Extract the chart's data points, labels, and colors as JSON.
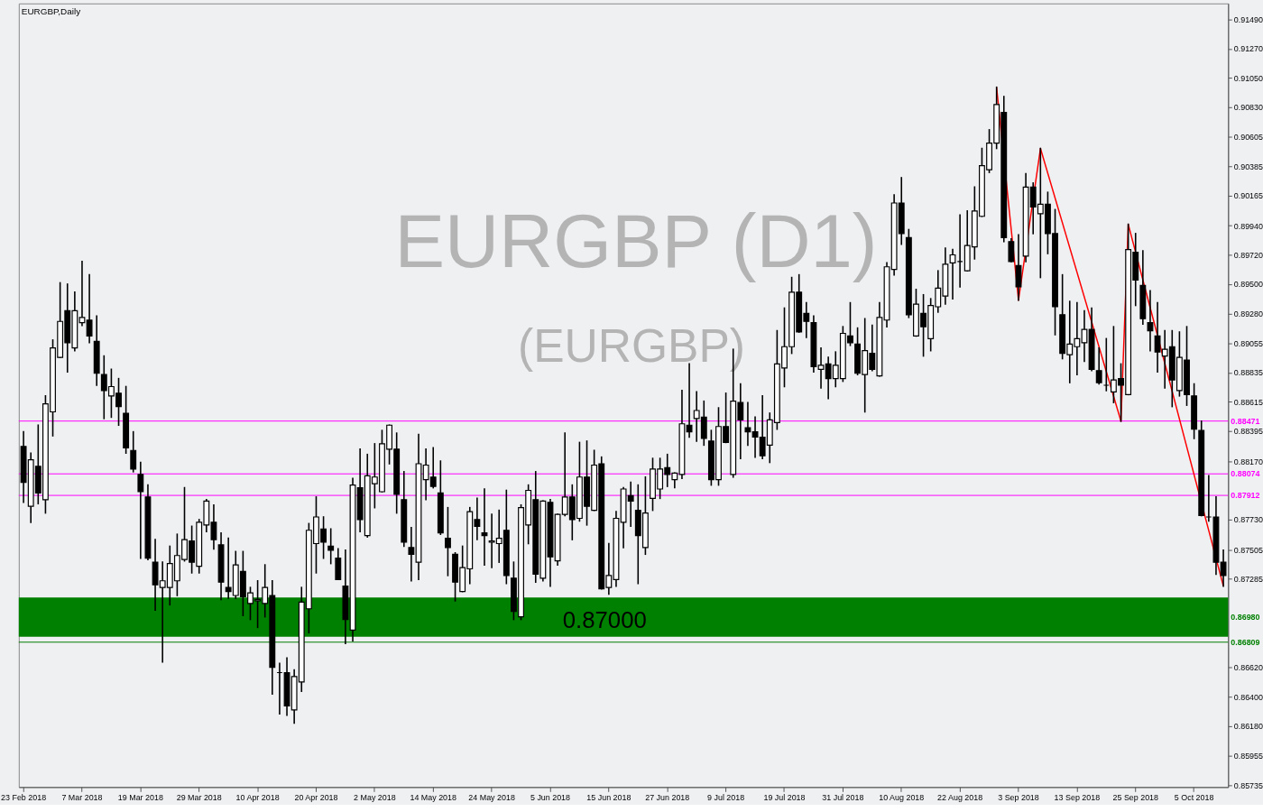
{
  "chart_data": {
    "type": "candlestick",
    "title": "EURGBP,Daily",
    "categories": [
      "23 Feb 2018",
      null,
      null,
      null,
      null,
      null,
      null,
      null,
      "7 Mar 2018",
      null,
      null,
      null,
      null,
      null,
      null,
      null,
      "19 Mar 2018",
      null,
      null,
      null,
      null,
      null,
      null,
      null,
      "29 Mar 2018",
      null,
      null,
      null,
      null,
      null,
      null,
      null,
      "10 Apr 2018",
      null,
      null,
      null,
      null,
      null,
      null,
      null,
      "20 Apr 2018",
      null,
      null,
      null,
      null,
      null,
      null,
      null,
      "2 May 2018",
      null,
      null,
      null,
      null,
      null,
      null,
      null,
      "14 May 2018",
      null,
      null,
      null,
      null,
      null,
      null,
      null,
      "24 May 2018",
      null,
      null,
      null,
      null,
      null,
      null,
      null,
      "5 Jun 2018",
      null,
      null,
      null,
      null,
      null,
      null,
      null,
      "15 Jun 2018",
      null,
      null,
      null,
      null,
      null,
      null,
      null,
      "27 Jun 2018",
      null,
      null,
      null,
      null,
      null,
      null,
      null,
      "9 Jul 2018",
      null,
      null,
      null,
      null,
      null,
      null,
      null,
      "19 Jul 2018",
      null,
      null,
      null,
      null,
      null,
      null,
      null,
      "31 Jul 2018",
      null,
      null,
      null,
      null,
      null,
      null,
      null,
      "10 Aug 2018",
      null,
      null,
      null,
      null,
      null,
      null,
      null,
      "22 Aug 2018",
      null,
      null,
      null,
      null,
      null,
      null,
      null,
      "3 Sep 2018",
      null,
      null,
      null,
      null,
      null,
      null,
      null,
      "13 Sep 2018",
      null,
      null,
      null,
      null,
      null,
      null,
      null,
      "25 Sep 2018",
      null,
      null,
      null,
      null,
      null,
      null,
      null,
      "5 Oct 2018",
      null,
      null,
      null,
      null
    ],
    "ohlc": [
      [
        0.8828,
        0.8839,
        0.8786,
        0.8801
      ],
      [
        0.8783,
        0.8823,
        0.8771,
        0.8818
      ],
      [
        0.8813,
        0.8844,
        0.8785,
        0.8793
      ],
      [
        0.8788,
        0.8866,
        0.8778,
        0.886
      ],
      [
        0.8854,
        0.8908,
        0.8836,
        0.8902
      ],
      [
        0.8895,
        0.8951,
        0.8895,
        0.8922
      ],
      [
        0.893,
        0.895,
        0.8884,
        0.8906
      ],
      [
        0.8902,
        0.8944,
        0.89,
        0.893
      ],
      [
        0.8921,
        0.8967,
        0.8919,
        0.8925
      ],
      [
        0.8923,
        0.8957,
        0.8906,
        0.8911
      ],
      [
        0.8907,
        0.8926,
        0.8874,
        0.8883
      ],
      [
        0.8882,
        0.8896,
        0.8849,
        0.887
      ],
      [
        0.8866,
        0.8886,
        0.885,
        0.8873
      ],
      [
        0.8868,
        0.8879,
        0.8844,
        0.8858
      ],
      [
        0.8853,
        0.8873,
        0.8823,
        0.8827
      ],
      [
        0.8825,
        0.8839,
        0.8809,
        0.8811
      ],
      [
        0.8807,
        0.8816,
        0.8744,
        0.8794
      ],
      [
        0.879,
        0.8799,
        0.8743,
        0.8744
      ],
      [
        0.8741,
        0.8758,
        0.8705,
        0.8724
      ],
      [
        0.8722,
        0.8741,
        0.8666,
        0.8727
      ],
      [
        0.8722,
        0.8753,
        0.8709,
        0.874
      ],
      [
        0.8727,
        0.8762,
        0.8716,
        0.8746
      ],
      [
        0.8743,
        0.8797,
        0.8742,
        0.8758
      ],
      [
        0.8757,
        0.8768,
        0.8733,
        0.8741
      ],
      [
        0.8738,
        0.8773,
        0.8733,
        0.8771
      ],
      [
        0.8769,
        0.8788,
        0.8764,
        0.8787
      ],
      [
        0.8771,
        0.8784,
        0.8751,
        0.8758
      ],
      [
        0.8754,
        0.8763,
        0.8713,
        0.8726
      ],
      [
        0.8722,
        0.8759,
        0.8714,
        0.8719
      ],
      [
        0.8716,
        0.8749,
        0.8714,
        0.8739
      ],
      [
        0.8734,
        0.8749,
        0.8701,
        0.8715
      ],
      [
        0.871,
        0.8722,
        0.8698,
        0.8718
      ],
      [
        0.8712,
        0.8727,
        0.8692,
        0.8713
      ],
      [
        0.871,
        0.8739,
        0.87,
        0.8722
      ],
      [
        0.8716,
        0.8727,
        0.8642,
        0.8662
      ],
      [
        0.8658,
        0.8665,
        0.8627,
        0.8658
      ],
      [
        0.8658,
        0.8669,
        0.8626,
        0.8633
      ],
      [
        0.863,
        0.866,
        0.862,
        0.8655
      ],
      [
        0.8651,
        0.8722,
        0.8644,
        0.8711
      ],
      [
        0.8706,
        0.877,
        0.8688,
        0.8765
      ],
      [
        0.8755,
        0.879,
        0.8733,
        0.8775
      ],
      [
        0.8766,
        0.8775,
        0.8744,
        0.8756
      ],
      [
        0.8753,
        0.8766,
        0.874,
        0.875
      ],
      [
        0.8744,
        0.8751,
        0.8728,
        0.8728
      ],
      [
        0.8723,
        0.875,
        0.868,
        0.8698
      ],
      [
        0.869,
        0.8804,
        0.8682,
        0.8799
      ],
      [
        0.8797,
        0.8826,
        0.8764,
        0.8773
      ],
      [
        0.8761,
        0.8822,
        0.876,
        0.8806
      ],
      [
        0.88,
        0.883,
        0.8782,
        0.8805
      ],
      [
        0.8794,
        0.884,
        0.8794,
        0.883
      ],
      [
        0.8826,
        0.8844,
        0.8815,
        0.8844
      ],
      [
        0.8826,
        0.8838,
        0.8778,
        0.8792
      ],
      [
        0.8788,
        0.8809,
        0.8753,
        0.8756
      ],
      [
        0.8752,
        0.8767,
        0.8727,
        0.8747
      ],
      [
        0.8741,
        0.8837,
        0.8728,
        0.8815
      ],
      [
        0.8803,
        0.8826,
        0.8788,
        0.8814
      ],
      [
        0.8805,
        0.8827,
        0.8797,
        0.8798
      ],
      [
        0.8793,
        0.8817,
        0.8762,
        0.8763
      ],
      [
        0.8759,
        0.8782,
        0.8731,
        0.8752
      ],
      [
        0.8747,
        0.8748,
        0.8712,
        0.8726
      ],
      [
        0.8719,
        0.8753,
        0.8719,
        0.8737
      ],
      [
        0.8736,
        0.8782,
        0.8725,
        0.8779
      ],
      [
        0.8773,
        0.8789,
        0.8758,
        0.8768
      ],
      [
        0.8763,
        0.8796,
        0.8739,
        0.8761
      ],
      [
        0.8756,
        0.8777,
        0.8737,
        0.8757
      ],
      [
        0.8755,
        0.878,
        0.8741,
        0.8759
      ],
      [
        0.8765,
        0.8795,
        0.8725,
        0.8731
      ],
      [
        0.8729,
        0.8741,
        0.8698,
        0.8704
      ],
      [
        0.87,
        0.8784,
        0.8698,
        0.8782
      ],
      [
        0.8769,
        0.8799,
        0.8755,
        0.8795
      ],
      [
        0.8788,
        0.8809,
        0.8726,
        0.8732
      ],
      [
        0.8729,
        0.8787,
        0.8727,
        0.8787
      ],
      [
        0.8786,
        0.8788,
        0.8723,
        0.8745
      ],
      [
        0.8742,
        0.8777,
        0.8739,
        0.8777
      ],
      [
        0.8777,
        0.8838,
        0.8776,
        0.879
      ],
      [
        0.879,
        0.8799,
        0.8758,
        0.8773
      ],
      [
        0.8774,
        0.8831,
        0.8772,
        0.8805
      ],
      [
        0.8805,
        0.8832,
        0.8769,
        0.8783
      ],
      [
        0.878,
        0.8825,
        0.878,
        0.8814
      ],
      [
        0.8815,
        0.882,
        0.8721,
        0.8721
      ],
      [
        0.8722,
        0.8755,
        0.8717,
        0.8731
      ],
      [
        0.8728,
        0.8779,
        0.8723,
        0.8774
      ],
      [
        0.8771,
        0.8797,
        0.8752,
        0.8796
      ],
      [
        0.8791,
        0.8801,
        0.8768,
        0.8787
      ],
      [
        0.878,
        0.8799,
        0.8725,
        0.8761
      ],
      [
        0.8752,
        0.8805,
        0.8747,
        0.8778
      ],
      [
        0.8789,
        0.8819,
        0.878,
        0.8811
      ],
      [
        0.8796,
        0.8819,
        0.8789,
        0.8811
      ],
      [
        0.8812,
        0.8822,
        0.8798,
        0.8807
      ],
      [
        0.8803,
        0.8808,
        0.8797,
        0.8808
      ],
      [
        0.8807,
        0.887,
        0.8804,
        0.8845
      ],
      [
        0.8844,
        0.889,
        0.8835,
        0.8839
      ],
      [
        0.8849,
        0.8869,
        0.8832,
        0.8855
      ],
      [
        0.885,
        0.8862,
        0.8829,
        0.8834
      ],
      [
        0.8832,
        0.884,
        0.8799,
        0.8803
      ],
      [
        0.8803,
        0.8857,
        0.8799,
        0.8843
      ],
      [
        0.8843,
        0.8868,
        0.8831,
        0.8831
      ],
      [
        0.8807,
        0.8901,
        0.8805,
        0.8862
      ],
      [
        0.8861,
        0.8875,
        0.8819,
        0.8848
      ],
      [
        0.8842,
        0.8861,
        0.8829,
        0.8839
      ],
      [
        0.8839,
        0.885,
        0.882,
        0.8835
      ],
      [
        0.8835,
        0.8866,
        0.8819,
        0.8821
      ],
      [
        0.8829,
        0.8853,
        0.8816,
        0.8848
      ],
      [
        0.8846,
        0.8915,
        0.8841,
        0.889
      ],
      [
        0.8887,
        0.8932,
        0.8873,
        0.8903
      ],
      [
        0.8903,
        0.8955,
        0.8898,
        0.8944
      ],
      [
        0.8944,
        0.8957,
        0.8914,
        0.8914
      ],
      [
        0.8928,
        0.8936,
        0.891,
        0.8922
      ],
      [
        0.8921,
        0.8926,
        0.8884,
        0.8888
      ],
      [
        0.8886,
        0.8902,
        0.8872,
        0.8889
      ],
      [
        0.889,
        0.8895,
        0.8864,
        0.8879
      ],
      [
        0.8879,
        0.8899,
        0.8873,
        0.8889
      ],
      [
        0.8879,
        0.8918,
        0.8877,
        0.8913
      ],
      [
        0.8911,
        0.8936,
        0.8904,
        0.8906
      ],
      [
        0.8905,
        0.8917,
        0.8882,
        0.8883
      ],
      [
        0.8882,
        0.8924,
        0.8854,
        0.89
      ],
      [
        0.8898,
        0.8919,
        0.8885,
        0.8886
      ],
      [
        0.8881,
        0.8936,
        0.8881,
        0.8925
      ],
      [
        0.8923,
        0.8966,
        0.8918,
        0.8963
      ],
      [
        0.8961,
        0.9017,
        0.8957,
        0.9011
      ],
      [
        0.9011,
        0.903,
        0.898,
        0.8988
      ],
      [
        0.8985,
        0.8991,
        0.8925,
        0.8927
      ],
      [
        0.8911,
        0.8946,
        0.8911,
        0.8935
      ],
      [
        0.8928,
        0.8942,
        0.8896,
        0.8918
      ],
      [
        0.8909,
        0.8939,
        0.89,
        0.8934
      ],
      [
        0.8933,
        0.896,
        0.8929,
        0.8947
      ],
      [
        0.8941,
        0.8977,
        0.8935,
        0.8965
      ],
      [
        0.8966,
        0.8976,
        0.8939,
        0.8972
      ],
      [
        0.8967,
        0.9002,
        0.8948,
        0.8967
      ],
      [
        0.896,
        0.9005,
        0.896,
        0.8979
      ],
      [
        0.8978,
        0.9023,
        0.8969,
        0.9005
      ],
      [
        0.9001,
        0.9052,
        0.9001,
        0.9039
      ],
      [
        0.9036,
        0.9066,
        0.9034,
        0.9056
      ],
      [
        0.9056,
        0.9098,
        0.9052,
        0.9085
      ],
      [
        0.9079,
        0.9091,
        0.8982,
        0.8985
      ],
      [
        0.8982,
        0.8984,
        0.8967,
        0.8967
      ],
      [
        0.8964,
        0.8987,
        0.8938,
        0.8948
      ],
      [
        0.8971,
        0.9033,
        0.8967,
        0.9023
      ],
      [
        0.9023,
        0.9026,
        0.8988,
        0.9008
      ],
      [
        0.9003,
        0.9052,
        0.8955,
        0.901
      ],
      [
        0.901,
        0.9019,
        0.8973,
        0.8988
      ],
      [
        0.8988,
        0.9006,
        0.8912,
        0.8933
      ],
      [
        0.8927,
        0.8957,
        0.8894,
        0.8898
      ],
      [
        0.8897,
        0.8937,
        0.8876,
        0.8905
      ],
      [
        0.8903,
        0.8936,
        0.8882,
        0.8909
      ],
      [
        0.8906,
        0.893,
        0.8892,
        0.8916
      ],
      [
        0.8916,
        0.8932,
        0.8885,
        0.8886
      ],
      [
        0.8885,
        0.8902,
        0.8875,
        0.8876
      ],
      [
        0.8874,
        0.8909,
        0.887,
        0.8874
      ],
      [
        0.8869,
        0.8918,
        0.8861,
        0.8878
      ],
      [
        0.8879,
        0.889,
        0.8847,
        0.8874
      ],
      [
        0.8867,
        0.8995,
        0.8867,
        0.8976
      ],
      [
        0.8974,
        0.8988,
        0.8934,
        0.8953
      ],
      [
        0.8949,
        0.8975,
        0.892,
        0.8924
      ],
      [
        0.8921,
        0.8945,
        0.89,
        0.8915
      ],
      [
        0.8911,
        0.8936,
        0.8884,
        0.8899
      ],
      [
        0.8896,
        0.8915,
        0.8872,
        0.8901
      ],
      [
        0.8903,
        0.8915,
        0.8858,
        0.8878
      ],
      [
        0.887,
        0.8914,
        0.8866,
        0.8895
      ],
      [
        0.8893,
        0.8918,
        0.8859,
        0.8867
      ],
      [
        0.8866,
        0.8875,
        0.8834,
        0.8841
      ],
      [
        0.884,
        0.8847,
        0.8776,
        0.8776
      ],
      [
        0.8775,
        0.8806,
        0.8772,
        0.8775
      ],
      [
        0.8775,
        0.879,
        0.8732,
        0.8741
      ],
      [
        0.8741,
        0.875,
        0.8723,
        0.8731
      ]
    ],
    "series": [
      {
        "type": "line",
        "color": "#ff0000",
        "line_style": "solid",
        "values": [
          null,
          null,
          null,
          null,
          null,
          null,
          null,
          null,
          null,
          null,
          null,
          null,
          null,
          null,
          null,
          null,
          null,
          null,
          null,
          null,
          null,
          null,
          null,
          null,
          null,
          null,
          null,
          null,
          null,
          null,
          null,
          null,
          null,
          null,
          null,
          null,
          null,
          null,
          null,
          null,
          null,
          null,
          null,
          null,
          null,
          null,
          null,
          null,
          null,
          null,
          null,
          null,
          null,
          null,
          null,
          null,
          null,
          null,
          null,
          null,
          null,
          null,
          null,
          null,
          null,
          null,
          null,
          null,
          null,
          null,
          null,
          null,
          null,
          null,
          null,
          null,
          null,
          null,
          null,
          null,
          null,
          null,
          null,
          null,
          null,
          null,
          null,
          null,
          null,
          null,
          null,
          null,
          null,
          null,
          null,
          null,
          null,
          null,
          null,
          null,
          null,
          null,
          null,
          null,
          null,
          null,
          null,
          null,
          null,
          null,
          null,
          null,
          null,
          null,
          null,
          null,
          null,
          null,
          null,
          null,
          null,
          null,
          null,
          null,
          null,
          null,
          null,
          null,
          null,
          null,
          null,
          null,
          null,
          0.9098,
          null,
          null,
          0.8938,
          null,
          null,
          0.9052,
          null,
          null,
          null,
          null,
          null,
          null,
          null,
          null,
          null,
          null,
          0.8847,
          0.8995,
          null,
          null,
          null,
          null,
          null,
          null,
          null,
          null,
          null,
          null,
          null,
          null,
          0.8723
        ]
      }
    ],
    "ylim": [
      0.8572,
      0.9161
    ],
    "yticks": [
      {
        "value": 0.9149,
        "label": "0.91490"
      },
      {
        "value": 0.9127,
        "label": "0.91270"
      },
      {
        "value": 0.9105,
        "label": "0.91050"
      },
      {
        "value": 0.9083,
        "label": "0.90830"
      },
      {
        "value": 0.90605,
        "label": "0.90605"
      },
      {
        "value": 0.90385,
        "label": "0.90385"
      },
      {
        "value": 0.90165,
        "label": "0.90165"
      },
      {
        "value": 0.8994,
        "label": "0.89940"
      },
      {
        "value": 0.8972,
        "label": "0.89720"
      },
      {
        "value": 0.895,
        "label": "0.89500"
      },
      {
        "value": 0.8928,
        "label": "0.89280"
      },
      {
        "value": 0.89055,
        "label": "0.89055"
      },
      {
        "value": 0.88835,
        "label": "0.88835"
      },
      {
        "value": 0.88615,
        "label": "0.88615"
      },
      {
        "value": 0.88395,
        "label": "0.88395"
      },
      {
        "value": 0.8817,
        "label": "0.88170"
      },
      {
        "value": 0.8773,
        "label": "0.87730"
      },
      {
        "value": 0.87505,
        "label": "0.87505"
      },
      {
        "value": 0.87285,
        "label": "0.87285"
      },
      {
        "value": 0.8662,
        "label": "0.86620"
      },
      {
        "value": 0.864,
        "label": "0.86400"
      },
      {
        "value": 0.8618,
        "label": "0.86180"
      },
      {
        "value": 0.85955,
        "label": "0.85955"
      },
      {
        "value": 0.85735,
        "label": "0.85735"
      }
    ],
    "ref_lines": [
      {
        "axis": "y",
        "value": 0.88471,
        "label": "0.88471",
        "color": "#ff00ff"
      },
      {
        "axis": "y",
        "value": 0.88074,
        "label": "0.88074",
        "color": "#ff00ff"
      },
      {
        "axis": "y",
        "value": 0.87912,
        "label": "0.87912",
        "color": "#ff00ff"
      },
      {
        "axis": "y",
        "value": 0.86809,
        "label": "0.86809",
        "color": "#008000"
      }
    ],
    "bands": [
      {
        "axis": "y",
        "from": 0.86849,
        "to": 0.87144,
        "label": "0.86980",
        "color": "#008000"
      }
    ],
    "annotations": [
      "0.87000",
      "EURGBP (D1)",
      "(EURGBP)"
    ]
  }
}
